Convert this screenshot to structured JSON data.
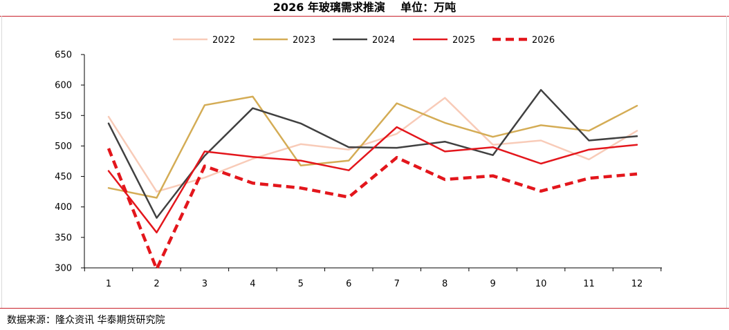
{
  "title": "2026 年玻璃需求推演    单位：万吨",
  "source": "数据来源：隆众资讯  华泰期货研究院",
  "chart_data": {
    "type": "line",
    "title": "2026 年玻璃需求推演    单位：万吨",
    "xlabel": "",
    "ylabel": "",
    "categories": [
      "1",
      "2",
      "3",
      "4",
      "5",
      "6",
      "7",
      "8",
      "9",
      "10",
      "11",
      "12"
    ],
    "ylim": [
      300,
      650
    ],
    "yticks": [
      "300",
      "350",
      "400",
      "450",
      "500",
      "550",
      "600",
      "650"
    ],
    "grid": false,
    "legend_position": "top",
    "series": [
      {
        "name": "2022",
        "color": "#f8cbb8",
        "dashed": false,
        "width": 2.5,
        "values": [
          548,
          425,
          448,
          479,
          503,
          494,
          520,
          579,
          502,
          509,
          478,
          525
        ]
      },
      {
        "name": "2023",
        "color": "#d4ac55",
        "dashed": false,
        "width": 2.5,
        "values": [
          431,
          415,
          567,
          581,
          468,
          476,
          570,
          538,
          515,
          534,
          525,
          566
        ]
      },
      {
        "name": "2024",
        "color": "#404040",
        "dashed": false,
        "width": 2.5,
        "values": [
          537,
          382,
          484,
          562,
          537,
          498,
          497,
          507,
          485,
          592,
          509,
          516
        ]
      },
      {
        "name": "2025",
        "color": "#e3161c",
        "dashed": false,
        "width": 2.5,
        "values": [
          459,
          358,
          491,
          482,
          476,
          460,
          531,
          491,
          498,
          471,
          494,
          502
        ]
      },
      {
        "name": "2026",
        "color": "#e3161c",
        "dashed": true,
        "width": 4.5,
        "values": [
          496,
          298,
          467,
          439,
          431,
          416,
          481,
          445,
          451,
          426,
          447,
          454
        ]
      }
    ]
  }
}
